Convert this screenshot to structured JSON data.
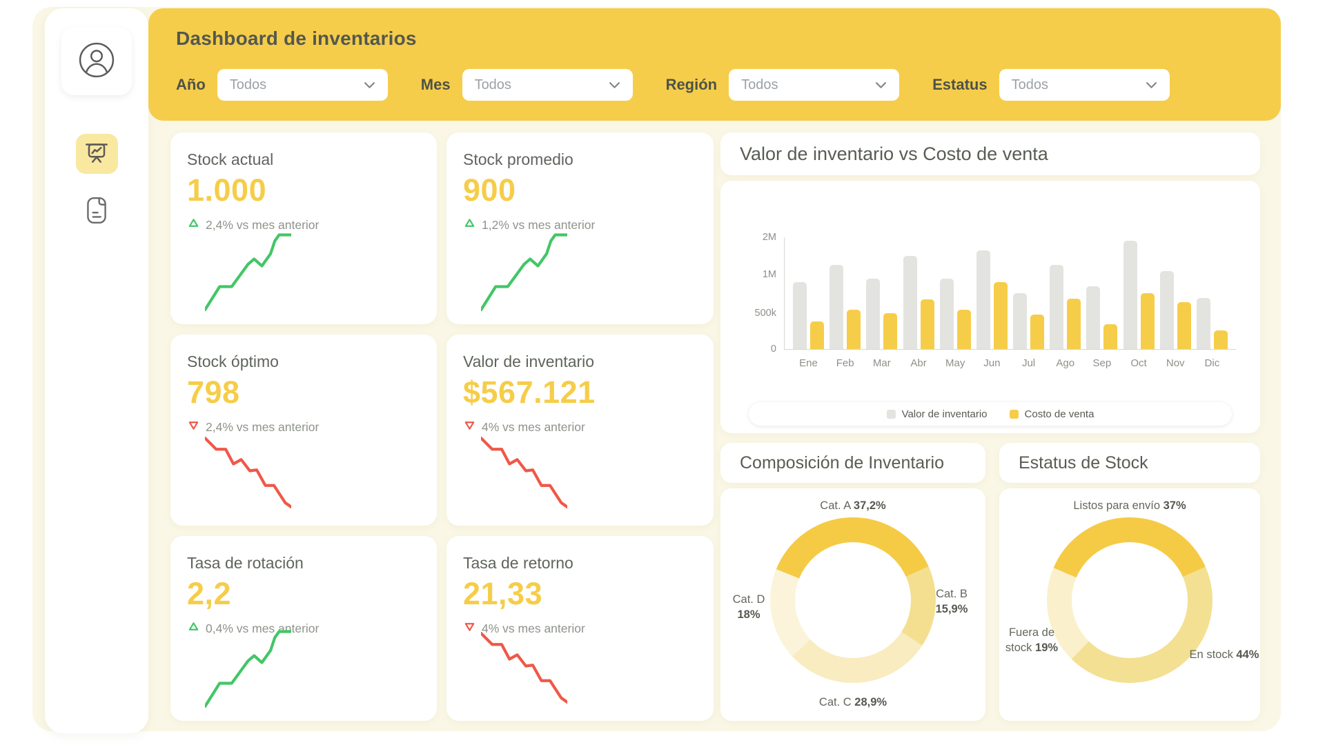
{
  "colors": {
    "header_yellow": "#F5CD4B",
    "accent_yellow": "#F6CD49",
    "bar_gray": "#E3E3E0",
    "bar_yellow": "#F6CD49",
    "green": "#43C667",
    "red": "#EF5848",
    "cream_bg": "#FAF7E6",
    "active_nav_bg": "#F9E8A0"
  },
  "sidebar": {
    "items": [
      {
        "name": "profile",
        "icon": "user-icon",
        "active": false
      },
      {
        "name": "dashboard",
        "icon": "presentation-chart-icon",
        "active": true
      },
      {
        "name": "reports",
        "icon": "document-icon",
        "active": false
      }
    ]
  },
  "header": {
    "title": "Dashboard de inventarios",
    "filters": [
      {
        "label": "Año",
        "value": "Todos"
      },
      {
        "label": "Mes",
        "value": "Todos"
      },
      {
        "label": "Región",
        "value": "Todos"
      },
      {
        "label": "Estatus",
        "value": "Todos"
      }
    ]
  },
  "kpis": [
    {
      "title": "Stock actual",
      "value": "1.000",
      "delta": "2,4% vs mes anterior",
      "direction": "up"
    },
    {
      "title": "Stock promedio",
      "value": "900",
      "delta": "1,2% vs mes anterior",
      "direction": "up"
    },
    {
      "title": "Stock óptimo",
      "value": "798",
      "delta": "2,4% vs mes anterior",
      "direction": "down"
    },
    {
      "title": "Valor de inventario",
      "value": "$567.121",
      "delta": "4% vs mes anterior",
      "direction": "down"
    },
    {
      "title": "Tasa de rotación",
      "value": "2,2",
      "delta": "0,4% vs mes anterior",
      "direction": "up"
    },
    {
      "title": "Tasa de retorno",
      "value": "21,33",
      "delta": "4% vs mes anterior",
      "direction": "down"
    }
  ],
  "sparklines": {
    "up": [
      [
        0,
        93
      ],
      [
        17,
        66
      ],
      [
        31,
        66
      ],
      [
        50,
        40
      ],
      [
        57,
        34
      ],
      [
        66,
        42
      ],
      [
        76,
        28
      ],
      [
        81,
        13
      ],
      [
        86,
        6
      ],
      [
        100,
        6
      ]
    ],
    "down": [
      [
        0,
        8
      ],
      [
        13,
        21
      ],
      [
        24,
        21
      ],
      [
        33,
        38
      ],
      [
        42,
        33
      ],
      [
        52,
        46
      ],
      [
        60,
        45
      ],
      [
        70,
        63
      ],
      [
        80,
        63
      ],
      [
        93,
        83
      ],
      [
        100,
        88
      ]
    ]
  },
  "chart_data": [
    {
      "type": "bar",
      "title": "Valor de inventario vs Costo de venta",
      "categories": [
        "Ene",
        "Feb",
        "Mar",
        "Abr",
        "May",
        "Jun",
        "Jul",
        "Ago",
        "Sep",
        "Oct",
        "Nov",
        "Dic"
      ],
      "series": [
        {
          "name": "Valor de inventario",
          "color_key": "bar_gray",
          "values": [
            900000,
            1250000,
            950000,
            1500000,
            950000,
            1650000,
            760000,
            1250000,
            850000,
            1900000,
            1100000,
            700000
          ]
        },
        {
          "name": "Costo de venta",
          "color_key": "bar_yellow",
          "values": [
            390000,
            550000,
            500000,
            680000,
            550000,
            900000,
            480000,
            690000,
            350000,
            760000,
            640000,
            260000
          ]
        }
      ],
      "yticks": [
        {
          "label": "0",
          "value": 0
        },
        {
          "label": "500k",
          "value": 500000
        },
        {
          "label": "1M",
          "value": 1000000
        },
        {
          "label": "2M",
          "value": 2000000
        }
      ],
      "ylim": [
        0,
        2000000
      ],
      "grid": false,
      "legend_position": "bottom",
      "axis_scale_stops": [
        [
          0,
          0
        ],
        [
          500000,
          0.32
        ],
        [
          1000000,
          0.667
        ],
        [
          2000000,
          1
        ]
      ]
    },
    {
      "type": "pie",
      "donut": true,
      "title": "Composición de Inventario",
      "start_angle": 292,
      "colors": [
        "#F5CB45",
        "#F4DF90",
        "#F8ECC0",
        "#FBF4DB"
      ],
      "slices": [
        {
          "label": "Cat. A",
          "pct_text": "37,2%",
          "value": 37.2,
          "slot": "top"
        },
        {
          "label": "Cat. B",
          "pct_text": "15,9%",
          "value": 15.9,
          "slot": "right"
        },
        {
          "label": "Cat. C",
          "pct_text": "28,9%",
          "value": 28.9,
          "slot": "bottom"
        },
        {
          "label": "Cat. D",
          "pct_text": "18%",
          "value": 18,
          "slot": "left"
        }
      ]
    },
    {
      "type": "pie",
      "donut": true,
      "title": "Estatus de Stock",
      "start_angle": 293,
      "colors": [
        "#F5CB45",
        "#F4E092",
        "#FAF0CB"
      ],
      "slices": [
        {
          "label": "Listos para envío",
          "pct_text": "37%",
          "value": 37,
          "slot": "top"
        },
        {
          "label": "En stock",
          "pct_text": "44%",
          "value": 44,
          "slot": "bottom-right"
        },
        {
          "label": "Fuera de stock",
          "pct_text": "19%",
          "value": 19,
          "slot": "left"
        }
      ]
    }
  ]
}
